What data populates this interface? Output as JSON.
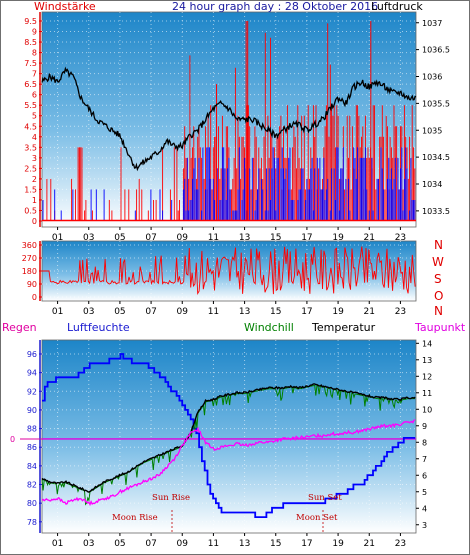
{
  "panel1": {
    "title": "24 hour graph day : 28 Oktober 2016",
    "left_label": "Windstärke",
    "right_label": "Luftdruck"
  },
  "panel2": {
    "dir_labels": [
      "N",
      "W",
      "S",
      "O",
      "N"
    ]
  },
  "panel3": {
    "labels": {
      "regen": "Regen",
      "humidity": "Luftfeuchte",
      "windchill": "Windchill",
      "temperature": "Temperatur",
      "dewpoint": "Taupunkt"
    },
    "annotations": {
      "sun_rise": "Sun Rise",
      "sun_set": "Sun Set",
      "moon_rise": "Moon Rise",
      "moon_set": "Moon Set"
    }
  },
  "colors": {
    "wind_gust": "#ff0000",
    "wind_avg": "#0000ff",
    "pressure": "#000000",
    "wind_dir": "#ff0000",
    "humidity": "#0000ff",
    "temperature": "#000000",
    "windchill": "#008000",
    "dewpoint": "#ff00ff",
    "rain": "#ff0000",
    "bg_top": "#1d85c8",
    "bg_bottom": "#ffffff"
  },
  "chart_data": [
    {
      "type": "line",
      "x_ticks": [
        "01",
        "03",
        "05",
        "07",
        "09",
        "11",
        "13",
        "15",
        "17",
        "19",
        "21",
        "23"
      ],
      "left_axis": {
        "ticks": [
          "0",
          "0.5",
          "1",
          "1.5",
          "2",
          "2.5",
          "3",
          "3.5",
          "4",
          "4.5",
          "5",
          "5.5",
          "6",
          "6.5",
          "7",
          "7.5",
          "8",
          "8.5",
          "9",
          "9.5"
        ],
        "ylim": [
          0,
          9.5
        ]
      },
      "right_axis": {
        "ticks": [
          "1033.5",
          "1034",
          "1034.5",
          "1035",
          "1035.5",
          "1036",
          "1036.5",
          "1037"
        ],
        "ylim": [
          1033.2,
          1037.2
        ]
      },
      "series": [
        {
          "x": [
            0,
            0.5,
            1,
            1.5,
            2,
            2.5,
            3,
            3.5,
            4,
            4.5,
            5,
            5.5,
            6,
            6.5,
            7,
            7.5,
            8,
            8.5,
            9,
            9.5,
            10,
            10.5,
            11,
            11.5,
            12,
            12.5,
            13,
            13.5,
            14,
            14.5,
            15,
            15.5,
            16,
            16.5,
            17,
            17.5,
            18,
            18.5,
            19,
            19.5,
            20,
            20.5,
            21,
            21.5,
            22,
            22.5,
            23,
            23.5,
            24
          ],
          "values": [
            1035.9,
            1036.0,
            1035.9,
            1036.1,
            1036.0,
            1035.6,
            1035.4,
            1035.2,
            1035.1,
            1035.0,
            1034.9,
            1034.6,
            1034.3,
            1034.4,
            1034.5,
            1034.6,
            1034.8,
            1034.7,
            1034.7,
            1034.9,
            1035.0,
            1035.2,
            1035.4,
            1035.5,
            1035.4,
            1035.2,
            1035.2,
            1035.2,
            1035.1,
            1035.0,
            1034.9,
            1035.0,
            1035.1,
            1035.1,
            1035.0,
            1035.1,
            1035.2,
            1035.4,
            1035.6,
            1035.5,
            1035.8,
            1035.9,
            1035.8,
            1035.9,
            1035.8,
            1035.7,
            1035.7,
            1035.6,
            1035.6
          ]
        }
      ]
    },
    {
      "type": "line",
      "x_ticks": [
        "01",
        "03",
        "05",
        "07",
        "09",
        "11",
        "13",
        "15",
        "17",
        "19",
        "21",
        "23"
      ],
      "y_ticks": [
        "0",
        "90",
        "180",
        "270",
        "360"
      ],
      "ylim": [
        0,
        360
      ]
    },
    {
      "type": "line",
      "x_ticks": [
        "01",
        "03",
        "05",
        "07",
        "09",
        "11",
        "13",
        "15",
        "17",
        "19",
        "21",
        "23"
      ],
      "left_axis": {
        "ticks": [
          "78",
          "80",
          "82",
          "84",
          "86",
          "88",
          "90",
          "92",
          "94",
          "96"
        ],
        "ylim": [
          76.8,
          97.5
        ]
      },
      "right_axis": {
        "ticks": [
          "3",
          "4",
          "5",
          "6",
          "7",
          "8",
          "9",
          "10",
          "11",
          "12",
          "13",
          "14"
        ],
        "ylim": [
          2.5,
          14.2
        ]
      },
      "rain_axis": {
        "ticks": [
          "0"
        ]
      },
      "series": [
        {
          "x": [
            0,
            0.2,
            0.5,
            1,
            1.5,
            2,
            2.5,
            3,
            3.5,
            4,
            4.5,
            5,
            5.5,
            6,
            6.5,
            7,
            7.5,
            8,
            8.5,
            9,
            9.5,
            10,
            10.2,
            10.5,
            11,
            11.5,
            12,
            12.5,
            13,
            13.5,
            14,
            14.5,
            15,
            15.5,
            16,
            16.5,
            17,
            17.5,
            18,
            18.5,
            19,
            19.5,
            20,
            20.5,
            21,
            21.5,
            22,
            22.5,
            23,
            23.5,
            24
          ],
          "values": [
            91.2,
            92.8,
            93.2,
            93.3,
            93.3,
            93.5,
            94.0,
            94.8,
            95.0,
            95.0,
            95.5,
            95.8,
            95.3,
            95.0,
            95.0,
            94.5,
            93.8,
            92.8,
            91.8,
            90.5,
            89.2,
            86.8,
            85.2,
            82.8,
            80.2,
            79.2,
            79.0,
            78.8,
            79.2,
            78.8,
            78.5,
            79.0,
            79.5,
            79.8,
            79.8,
            80.0,
            80.0,
            80.0,
            80.2,
            80.5,
            81.0,
            81.2,
            81.8,
            82.2,
            83.0,
            84.0,
            85.2,
            86.0,
            86.5,
            87.2,
            87.2
          ]
        },
        {
          "x": [
            0,
            0.5,
            1,
            1.5,
            2,
            2.5,
            3,
            3.5,
            4,
            4.5,
            5,
            5.5,
            6,
            6.5,
            7,
            7.5,
            8,
            8.5,
            9,
            9.5,
            10,
            10.5,
            11,
            11.5,
            12,
            12.5,
            13,
            13.5,
            14,
            14.5,
            15,
            15.5,
            16,
            16.5,
            17,
            17.5,
            18,
            18.5,
            19,
            19.5,
            20,
            20.5,
            21,
            21.5,
            22,
            22.5,
            23,
            23.5,
            24
          ],
          "values": [
            5.8,
            5.6,
            5.5,
            5.6,
            5.4,
            5.2,
            5.0,
            5.3,
            5.6,
            5.8,
            6.0,
            6.2,
            6.5,
            6.8,
            7.0,
            7.2,
            7.4,
            7.6,
            7.8,
            8.5,
            9.8,
            10.5,
            10.6,
            10.8,
            10.9,
            11.0,
            11.0,
            11.1,
            11.2,
            11.3,
            11.3,
            11.3,
            11.4,
            11.3,
            11.4,
            11.5,
            11.4,
            11.3,
            11.2,
            11.1,
            11.0,
            10.9,
            10.8,
            10.7,
            10.7,
            10.6,
            10.6,
            10.7,
            10.7
          ]
        },
        {
          "x": [
            0,
            0.5,
            1,
            1.5,
            2,
            2.5,
            3,
            3.5,
            4,
            4.5,
            5,
            5.5,
            6,
            6.5,
            7,
            7.5,
            8,
            8.5,
            9,
            9.5,
            10,
            10.5,
            11,
            11.5,
            12,
            12.5,
            13,
            13.5,
            14,
            14.5,
            15,
            15.5,
            16,
            16.5,
            17,
            17.5,
            18,
            18.5,
            19,
            19.5,
            20,
            20.5,
            21,
            21.5,
            22,
            22.5,
            23,
            23.5,
            24
          ],
          "values": [
            4.5,
            4.5,
            4.6,
            4.3,
            4.5,
            4.6,
            4.3,
            4.4,
            4.6,
            4.7,
            5.0,
            5.2,
            5.4,
            5.6,
            5.8,
            6.0,
            6.5,
            7.0,
            7.8,
            8.5,
            8.8,
            8.0,
            7.6,
            7.7,
            7.8,
            7.9,
            7.8,
            7.9,
            8.0,
            8.0,
            8.1,
            8.2,
            8.2,
            8.3,
            8.3,
            8.4,
            8.4,
            8.5,
            8.5,
            8.6,
            8.6,
            8.7,
            8.8,
            8.9,
            9.0,
            9.0,
            9.1,
            9.2,
            9.3
          ]
        }
      ]
    }
  ]
}
